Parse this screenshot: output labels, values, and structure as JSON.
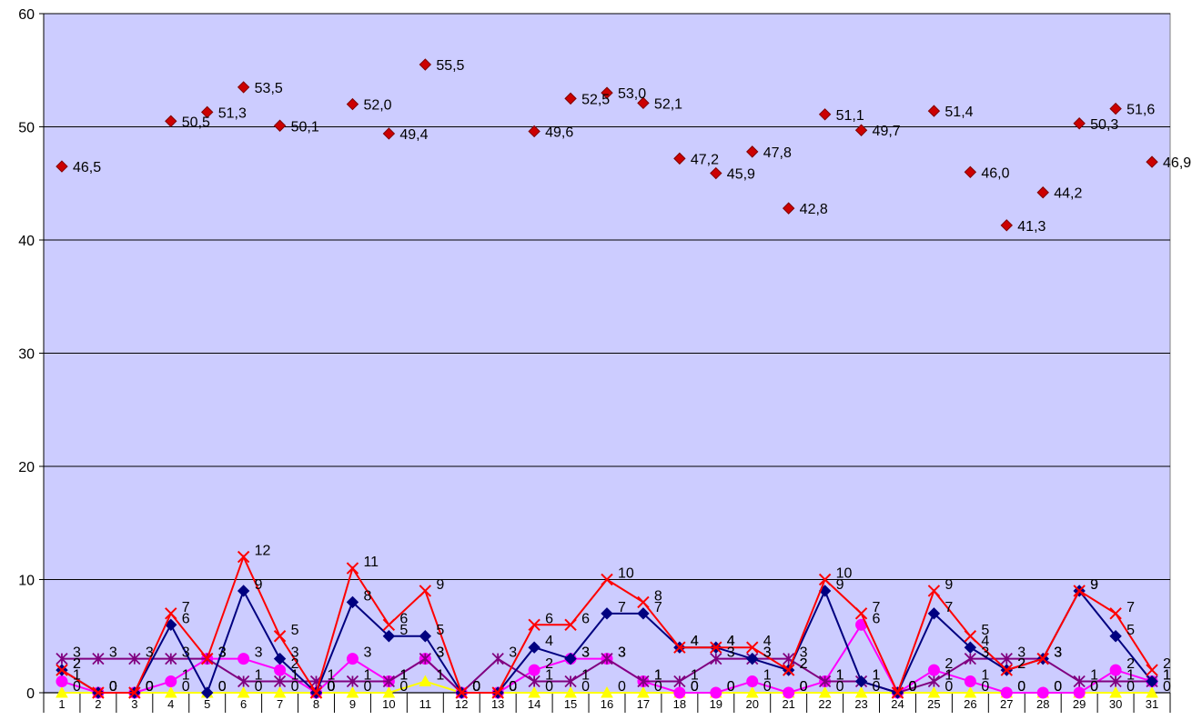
{
  "chart_data": {
    "type": "line",
    "ylim": [
      0,
      60
    ],
    "yticks": [
      "0",
      "10",
      "20",
      "30",
      "40",
      "50",
      "60"
    ],
    "categories": [
      "1",
      "2",
      "3",
      "4",
      "5",
      "6",
      "7",
      "8",
      "9",
      "10",
      "11",
      "12",
      "13",
      "14",
      "15",
      "16",
      "17",
      "18",
      "19",
      "20",
      "21",
      "22",
      "23",
      "24",
      "25",
      "26",
      "27",
      "28",
      "29",
      "30",
      "31"
    ],
    "plot_background": "#CCCCFF",
    "grid": true,
    "legend": "none",
    "series": [
      {
        "key": "temperature",
        "color": "#CC0000",
        "marker": "diamond",
        "line": false,
        "labels": "decimal-comma",
        "values": [
          46.5,
          null,
          null,
          50.5,
          51.3,
          53.5,
          50.1,
          null,
          52.0,
          49.4,
          55.5,
          null,
          null,
          49.6,
          52.5,
          53.0,
          52.1,
          47.2,
          45.9,
          47.8,
          42.8,
          51.1,
          49.7,
          null,
          51.4,
          46.0,
          41.3,
          44.2,
          50.3,
          51.6,
          46.9
        ]
      },
      {
        "key": "red-x",
        "color": "#FF0000",
        "marker": "x",
        "line": true,
        "values": [
          2,
          0,
          0,
          7,
          3,
          12,
          5,
          0,
          11,
          6,
          9,
          0,
          0,
          6,
          6,
          10,
          8,
          4,
          4,
          4,
          2,
          10,
          7,
          0,
          9,
          5,
          2,
          3,
          9,
          7,
          2
        ]
      },
      {
        "key": "navy-diamond",
        "color": "#000080",
        "marker": "diamond",
        "line": true,
        "values": [
          2,
          0,
          0,
          6,
          0,
          9,
          3,
          0,
          8,
          5,
          5,
          0,
          0,
          4,
          3,
          7,
          7,
          4,
          4,
          3,
          2,
          9,
          1,
          0,
          7,
          4,
          2,
          3,
          9,
          5,
          1
        ]
      },
      {
        "key": "purple-star",
        "color": "#800080",
        "marker": "star",
        "line": true,
        "values": [
          3,
          3,
          3,
          3,
          3,
          1,
          1,
          1,
          1,
          1,
          3,
          0,
          3,
          1,
          1,
          3,
          1,
          1,
          3,
          3,
          3,
          1,
          1,
          0,
          1,
          3,
          3,
          3,
          1,
          1,
          1
        ]
      },
      {
        "key": "magenta-circle",
        "color": "#FF00FF",
        "marker": "circle",
        "line": true,
        "values": [
          1,
          0,
          0,
          1,
          3,
          3,
          2,
          0,
          3,
          1,
          3,
          0,
          0,
          2,
          3,
          3,
          1,
          0,
          0,
          1,
          0,
          1,
          6,
          0,
          2,
          1,
          0,
          0,
          0,
          2,
          1
        ]
      },
      {
        "key": "yellow-triangle",
        "color": "#FFFF00",
        "marker": "triangle",
        "line": true,
        "values": [
          0,
          0,
          0,
          0,
          0,
          0,
          0,
          0,
          0,
          0,
          1,
          0,
          0,
          0,
          0,
          0,
          0,
          0,
          0,
          0,
          0,
          0,
          0,
          0,
          0,
          0,
          0,
          0,
          0,
          0,
          0
        ]
      }
    ]
  }
}
